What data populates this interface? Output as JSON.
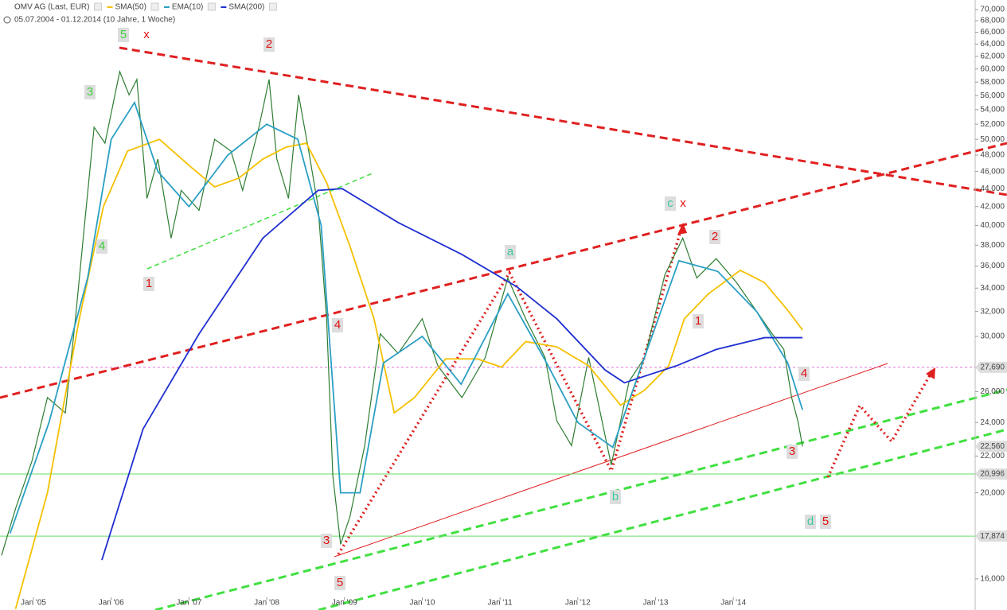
{
  "chart_data": {
    "type": "line",
    "subtitle": "05.07.2004 - 01.12.2014 (10 Jahre, 1 Woche)",
    "log_y": true,
    "xlim": [
      2004.57,
      2017.11
    ],
    "ylim": [
      14760,
      71750
    ],
    "xticks": [
      {
        "value": 2005,
        "label": "Jan '05"
      },
      {
        "value": 2006,
        "label": "Jan '06"
      },
      {
        "value": 2007,
        "label": "Jan '07"
      },
      {
        "value": 2008,
        "label": "Jan '08"
      },
      {
        "value": 2009,
        "label": "Jan '09"
      },
      {
        "value": 2010,
        "label": "Jan '10"
      },
      {
        "value": 2011,
        "label": "Jan '11"
      },
      {
        "value": 2012,
        "label": "Jan '12"
      },
      {
        "value": 2013,
        "label": "Jan '13"
      },
      {
        "value": 2014,
        "label": "Jan '14"
      }
    ],
    "yticks": [
      {
        "value": 16000,
        "label": "16,000"
      },
      {
        "value": 20000,
        "label": "20,000"
      },
      {
        "value": 22000,
        "label": "22,000"
      },
      {
        "value": 24000,
        "label": "24,000"
      },
      {
        "value": 26000,
        "label": "26,000"
      },
      {
        "value": 30000,
        "label": "30,000"
      },
      {
        "value": 32000,
        "label": "32,000"
      },
      {
        "value": 34000,
        "label": "34,000"
      },
      {
        "value": 36000,
        "label": "36,000"
      },
      {
        "value": 38000,
        "label": "38,000"
      },
      {
        "value": 40000,
        "label": "40,000"
      },
      {
        "value": 42000,
        "label": "42,000"
      },
      {
        "value": 44000,
        "label": "44,000"
      },
      {
        "value": 46000,
        "label": "46,000"
      },
      {
        "value": 48000,
        "label": "48,000"
      },
      {
        "value": 50000,
        "label": "50,000"
      },
      {
        "value": 52000,
        "label": "52,000"
      },
      {
        "value": 54000,
        "label": "54,000"
      },
      {
        "value": 56000,
        "label": "56,000"
      },
      {
        "value": 58000,
        "label": "58,000"
      },
      {
        "value": 60000,
        "label": "60,000"
      },
      {
        "value": 62000,
        "label": "62,000"
      },
      {
        "value": 64000,
        "label": "64,000"
      },
      {
        "value": 66000,
        "label": "66,000"
      },
      {
        "value": 68000,
        "label": "68,000"
      },
      {
        "value": 70000,
        "label": "70,000"
      }
    ],
    "series": [
      {
        "name": "OMV AG (Last, EUR)",
        "color": "#2e7d32",
        "x": [
          2004.59,
          2004.77,
          2004.98,
          2005.18,
          2005.41,
          2005.54,
          2005.64,
          2005.78,
          2005.92,
          2006.11,
          2006.23,
          2006.33,
          2006.46,
          2006.6,
          2006.77,
          2006.9,
          2007.13,
          2007.33,
          2007.54,
          2007.69,
          2007.9,
          2008.03,
          2008.13,
          2008.28,
          2008.41,
          2008.54,
          2008.66,
          2008.77,
          2008.85,
          2008.95,
          2009.07,
          2009.26,
          2009.46,
          2009.69,
          2010.0,
          2010.2,
          2010.51,
          2010.81,
          2011.1,
          2011.33,
          2011.58,
          2011.73,
          2011.92,
          2012.14,
          2012.43,
          2012.66,
          2012.86,
          2013.12,
          2013.35,
          2013.53,
          2013.78,
          2014.04,
          2014.29,
          2014.5,
          2014.65,
          2014.75,
          2014.83,
          2014.89
        ],
        "values": [
          17000,
          19200,
          21700,
          25600,
          24600,
          31400,
          38700,
          51600,
          49500,
          59600,
          56100,
          58400,
          42900,
          47500,
          38700,
          43800,
          41600,
          50000,
          48500,
          43800,
          51600,
          58400,
          47500,
          42900,
          56100,
          48500,
          42000,
          31400,
          20900,
          17500,
          18800,
          22600,
          30200,
          28700,
          31400,
          27800,
          25600,
          28400,
          34900,
          31400,
          28400,
          24100,
          22600,
          28400,
          21500,
          26700,
          28400,
          35200,
          38700,
          34900,
          36700,
          34500,
          32100,
          30200,
          29000,
          25600,
          24100,
          22560
        ]
      },
      {
        "name": "SMA(50)",
        "color": "#f5c000",
        "x": [
          2004.77,
          2005.18,
          2005.59,
          2005.9,
          2006.21,
          2006.62,
          2007.03,
          2007.33,
          2007.64,
          2007.95,
          2008.25,
          2008.51,
          2008.77,
          2009.07,
          2009.38,
          2009.64,
          2009.9,
          2010.3,
          2010.71,
          2011.02,
          2011.33,
          2011.73,
          2012.14,
          2012.55,
          2012.86,
          2013.17,
          2013.37,
          2013.68,
          2014.09,
          2014.4,
          2014.7,
          2014.89
        ],
        "values": [
          14800,
          20000,
          31400,
          42000,
          48500,
          50000,
          46500,
          44200,
          45200,
          47500,
          49000,
          49500,
          44700,
          37900,
          31400,
          24600,
          25600,
          28300,
          28300,
          27700,
          29600,
          29200,
          27800,
          25100,
          26100,
          27800,
          31400,
          33500,
          35600,
          34500,
          32100,
          30500
        ]
      },
      {
        "name": "EMA(10)",
        "color": "#2a9fc4",
        "x": [
          2004.7,
          2005.2,
          2005.7,
          2006.0,
          2006.3,
          2006.6,
          2007.0,
          2007.5,
          2008.0,
          2008.4,
          2008.7,
          2008.95,
          2009.2,
          2009.5,
          2010.0,
          2010.5,
          2011.1,
          2011.6,
          2012.0,
          2012.45,
          2012.8,
          2013.3,
          2013.8,
          2014.3,
          2014.7,
          2014.89
        ],
        "values": [
          18000,
          24000,
          35000,
          50000,
          55000,
          46000,
          42000,
          48000,
          52000,
          50000,
          40000,
          20000,
          20000,
          28000,
          30000,
          26500,
          33500,
          28000,
          24000,
          22500,
          27500,
          36500,
          35500,
          32000,
          28000,
          24800
        ]
      },
      {
        "name": "SMA(200)",
        "color": "#1f2fd0",
        "x": [
          2005.88,
          2006.41,
          2007.13,
          2007.95,
          2008.66,
          2008.97,
          2009.69,
          2010.51,
          2011.22,
          2011.73,
          2012.35,
          2012.6,
          2013.27,
          2013.78,
          2014.4,
          2014.89
        ],
        "values": [
          16800,
          23600,
          30200,
          38700,
          43800,
          44000,
          40300,
          37100,
          34100,
          31400,
          27500,
          26600,
          27800,
          29000,
          29900,
          29900
        ]
      }
    ],
    "levels": [
      {
        "value": 27690,
        "label": "27,690",
        "color": "#e070e0"
      },
      {
        "value": 20996,
        "label": "20,996",
        "color": "#66dd66"
      },
      {
        "value": 17874,
        "label": "17,874",
        "color": "#66dd66"
      }
    ],
    "last_price": {
      "value": 22560,
      "label": "22,560"
    },
    "annotations": [
      "5",
      "x",
      "2",
      "3",
      "4",
      "1",
      "4",
      "3",
      "5",
      "a",
      "c",
      "x",
      "2",
      "1",
      "4",
      "3",
      "b",
      "d",
      "5"
    ]
  }
}
